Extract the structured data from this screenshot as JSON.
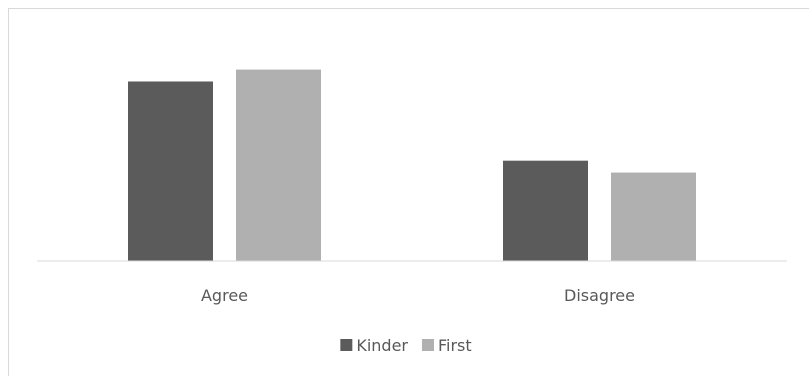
{
  "chart_data": {
    "type": "bar",
    "categories": [
      "Agree",
      "Disagree"
    ],
    "series": [
      {
        "name": "Kinder",
        "values": [
          68,
          38
        ],
        "color": "#5b5b5b"
      },
      {
        "name": "First",
        "values": [
          72.5,
          33.5
        ],
        "color": "#b0b0b0"
      }
    ],
    "ylim": [
      0,
      100
    ],
    "grid": false,
    "legend": "bottom-center",
    "title": "",
    "xlabel": "",
    "ylabel": ""
  }
}
